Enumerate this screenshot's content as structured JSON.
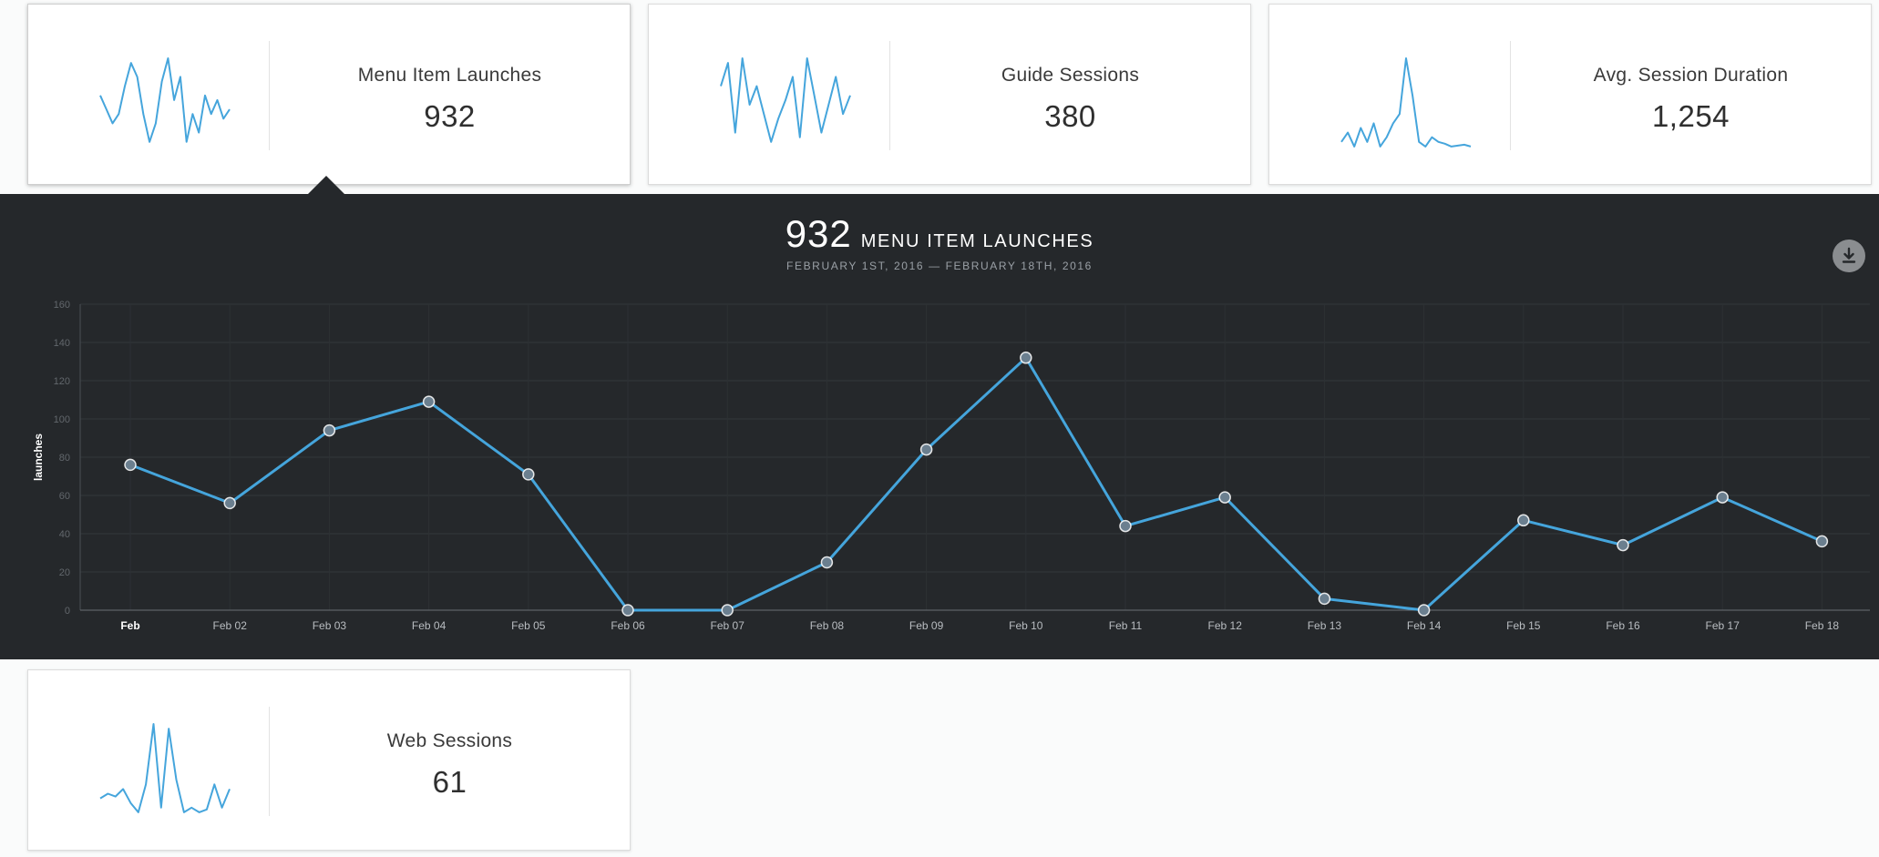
{
  "cards": [
    {
      "label": "Menu Item Launches",
      "value": "932",
      "spark": [
        60,
        45,
        30,
        40,
        70,
        95,
        80,
        40,
        10,
        30,
        75,
        100,
        55,
        80,
        10,
        40,
        20,
        60,
        40,
        55,
        35,
        45
      ]
    },
    {
      "label": "Guide Sessions",
      "value": "380",
      "spark": [
        70,
        95,
        20,
        100,
        50,
        70,
        40,
        10,
        35,
        55,
        80,
        15,
        100,
        60,
        20,
        50,
        80,
        40,
        60
      ]
    },
    {
      "label": "Avg. Session Duration",
      "value": "1,254",
      "spark": [
        10,
        20,
        5,
        25,
        10,
        30,
        5,
        15,
        30,
        40,
        100,
        60,
        10,
        5,
        15,
        10,
        8,
        5,
        6,
        7,
        5
      ]
    },
    {
      "label": "Web Sessions",
      "value": "61",
      "spark": [
        20,
        25,
        22,
        30,
        15,
        5,
        35,
        100,
        10,
        95,
        40,
        5,
        10,
        5,
        8,
        35,
        10,
        30
      ]
    }
  ],
  "panel": {
    "big_value": "932",
    "title": "MENU ITEM LAUNCHES",
    "subtitle": "FEBRUARY 1ST, 2016 — FEBRUARY 18TH, 2016",
    "download_icon": "download-icon"
  },
  "colors": {
    "accent": "#45a5dc",
    "panel_bg": "#25282b",
    "point_fill": "#6b7f8f"
  },
  "chart_data": {
    "type": "line",
    "categories": [
      "Feb",
      "Feb 02",
      "Feb 03",
      "Feb 04",
      "Feb 05",
      "Feb 06",
      "Feb 07",
      "Feb 08",
      "Feb 09",
      "Feb 10",
      "Feb 11",
      "Feb 12",
      "Feb 13",
      "Feb 14",
      "Feb 15",
      "Feb 16",
      "Feb 17",
      "Feb 18"
    ],
    "values": [
      76,
      56,
      94,
      109,
      71,
      0,
      0,
      25,
      84,
      132,
      44,
      59,
      6,
      0,
      47,
      34,
      59,
      36
    ],
    "ylabel": "launches",
    "ylim": [
      0,
      160
    ],
    "yticks": [
      0,
      20,
      40,
      60,
      80,
      100,
      120,
      140,
      160
    ],
    "grid": true,
    "legend": "none"
  }
}
